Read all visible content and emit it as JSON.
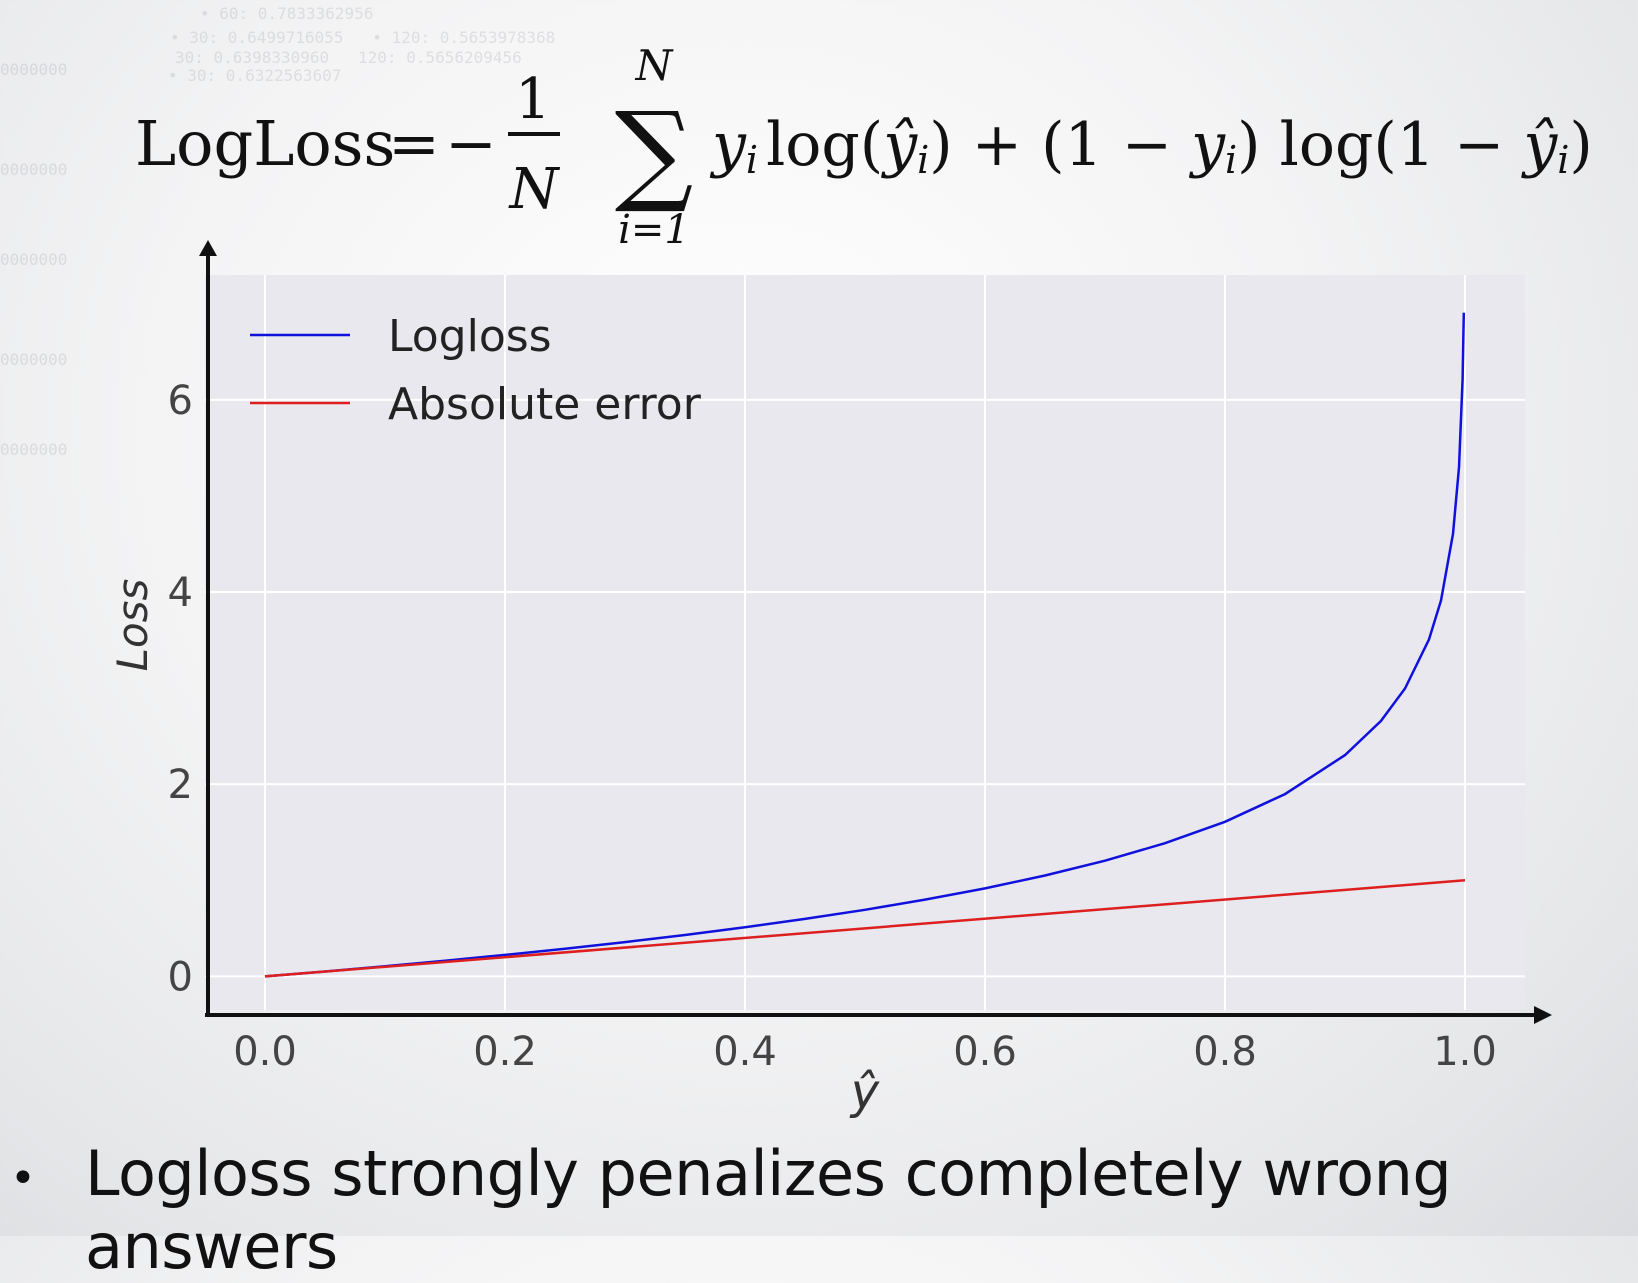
{
  "formula": {
    "lhs": "LogLoss",
    "eq": "=",
    "minus": "−",
    "num": "1",
    "den": "N",
    "sum_upper": "N",
    "sum_lower": "i=1",
    "sum_symbol": "∑",
    "body_a": "log(",
    "body_b": ") + (1 − ",
    "body_c": ") log(1 − ",
    "body_d": ")",
    "y": "y",
    "yhat": "ŷ",
    "i": "i"
  },
  "chart_data": {
    "type": "line",
    "xlabel": "ŷ",
    "ylabel": "Loss",
    "xlim": [
      -0.05,
      1.05
    ],
    "ylim": [
      -0.35,
      7.3
    ],
    "xticks": [
      0.0,
      0.2,
      0.4,
      0.6,
      0.8,
      1.0
    ],
    "xtick_labels": [
      "0.0",
      "0.2",
      "0.4",
      "0.6",
      "0.8",
      "1.0"
    ],
    "yticks": [
      0,
      2,
      4,
      6
    ],
    "ytick_labels": [
      "0",
      "2",
      "4",
      "6"
    ],
    "grid": true,
    "legend_position": "top-left",
    "series": [
      {
        "name": "Logloss",
        "color": "#1111dd",
        "x": [
          0.0,
          0.05,
          0.1,
          0.15,
          0.2,
          0.25,
          0.3,
          0.35,
          0.4,
          0.45,
          0.5,
          0.55,
          0.6,
          0.65,
          0.7,
          0.75,
          0.8,
          0.85,
          0.9,
          0.93,
          0.95,
          0.97,
          0.98,
          0.99,
          0.995,
          0.998,
          0.999
        ],
        "y": [
          0.0,
          0.051,
          0.105,
          0.163,
          0.223,
          0.288,
          0.357,
          0.431,
          0.511,
          0.598,
          0.693,
          0.799,
          0.916,
          1.05,
          1.204,
          1.386,
          1.609,
          1.897,
          2.303,
          2.659,
          2.996,
          3.507,
          3.912,
          4.605,
          5.298,
          6.215,
          6.908
        ]
      },
      {
        "name": "Absolute error",
        "color": "#dd1f1f",
        "x": [
          0.0,
          1.0
        ],
        "y": [
          0.0,
          1.0
        ]
      }
    ]
  },
  "bullet": {
    "symbol": "•",
    "text": "Logloss strongly penalizes completely wrong answers"
  }
}
